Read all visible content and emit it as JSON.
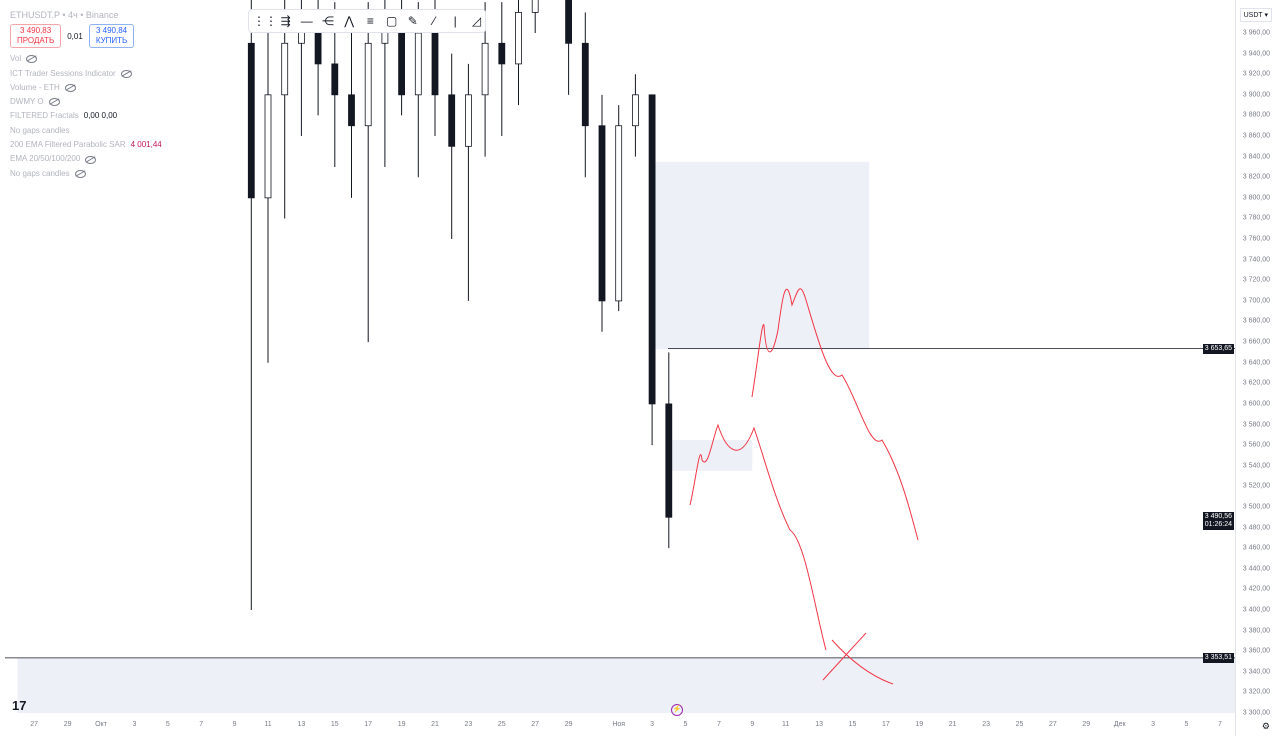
{
  "header": {
    "symbol": "ETHUSDT.P • 4ч • Binance",
    "sell_price": "3 490,83",
    "sell_label": "ПРОДАТЬ",
    "spread": "0,01",
    "buy_price": "3 490,84",
    "buy_label": "КУПИТЬ"
  },
  "indicators": [
    {
      "name": "Vol",
      "value": "",
      "eye": true
    },
    {
      "name": "ICT Trader Sessions Indicator",
      "value": "",
      "eye": true
    },
    {
      "name": "Volume - ETH",
      "value": "",
      "eye": true
    },
    {
      "name": "DWMY O",
      "value": "",
      "eye": true
    },
    {
      "name": "FILTERED Fractals",
      "value": "0,00 0,00",
      "eye": false
    },
    {
      "name": "No gaps candles",
      "value": "",
      "eye": false
    },
    {
      "name": "200 EMA Filtered Parabolic SAR",
      "value": "4 001,44",
      "eye": false,
      "red": true
    },
    {
      "name": "EMA 20/50/100/200",
      "value": "",
      "eye": true
    },
    {
      "name": "No gaps candles",
      "value": "",
      "eye": true
    }
  ],
  "toolbar": {
    "tools": [
      "drag-handle",
      "multi-line-tool",
      "horizontal-ray-tool",
      "parallel-channel-tool",
      "pattern-tool",
      "fib-tool",
      "rectangle-tool",
      "brush-tool",
      "trend-line-tool",
      "vertical-line-tool",
      "measure-tool"
    ]
  },
  "colors": {
    "up": "#131722",
    "down": "#131722",
    "zone": "#eef0f8",
    "drawing": "#f23645",
    "accent": "#2962ff"
  },
  "chart_data": {
    "type": "candlestick",
    "currency": "USDT",
    "ylim": [
      3290,
      3970
    ],
    "y_ticks": [
      "3 960,00",
      "3 940,00",
      "3 920,00",
      "3 900,00",
      "3 880,00",
      "3 860,00",
      "3 840,00",
      "3 820,00",
      "3 800,00",
      "3 780,00",
      "3 760,00",
      "3 740,00",
      "3 720,00",
      "3 700,00",
      "3 680,00",
      "3 660,00",
      "3 640,00",
      "3 620,00",
      "3 600,00",
      "3 580,00",
      "3 560,00",
      "3 540,00",
      "3 520,00",
      "3 500,00",
      "3 480,00",
      "3 460,00",
      "3 440,00",
      "3 420,00",
      "3 400,00",
      "3 380,00",
      "3 360,00",
      "3 340,00",
      "3 320,00",
      "3 300,00"
    ],
    "x_ticks": [
      [
        "27",
        "09-27"
      ],
      [
        "29",
        "09-29"
      ],
      [
        "Окт",
        "10-01"
      ],
      [
        "3",
        "10-03"
      ],
      [
        "5",
        "10-05"
      ],
      [
        "7",
        "10-07"
      ],
      [
        "9",
        "10-09"
      ],
      [
        "11",
        "10-11"
      ],
      [
        "13",
        "10-13"
      ],
      [
        "15",
        "10-15"
      ],
      [
        "17",
        "10-17"
      ],
      [
        "19",
        "10-19"
      ],
      [
        "21",
        "10-21"
      ],
      [
        "23",
        "10-23"
      ],
      [
        "25",
        "10-25"
      ],
      [
        "27",
        "10-27"
      ],
      [
        "29",
        "10-29"
      ],
      [
        "Ноя",
        "11-01"
      ],
      [
        "3",
        "11-03"
      ],
      [
        "5",
        "11-05"
      ],
      [
        "7",
        "11-07"
      ],
      [
        "9",
        "11-09"
      ],
      [
        "11",
        "11-11"
      ],
      [
        "13",
        "11-13"
      ],
      [
        "15",
        "11-15"
      ],
      [
        "17",
        "11-17"
      ],
      [
        "19",
        "11-19"
      ],
      [
        "21",
        "11-21"
      ],
      [
        "23",
        "11-23"
      ],
      [
        "25",
        "11-25"
      ],
      [
        "27",
        "11-27"
      ],
      [
        "29",
        "11-29"
      ],
      [
        "Дек",
        "12-01"
      ],
      [
        "3",
        "12-03"
      ],
      [
        "5",
        "12-05"
      ],
      [
        "7",
        "12-07"
      ]
    ],
    "candles": [
      [
        "10-10",
        3950,
        4000,
        3400,
        3800
      ],
      [
        "10-11",
        3800,
        3960,
        3640,
        3900
      ],
      [
        "10-12",
        3900,
        4000,
        3780,
        3950
      ],
      [
        "10-13",
        3950,
        4010,
        3860,
        3980
      ],
      [
        "10-14",
        3980,
        4020,
        3880,
        3930
      ],
      [
        "10-15",
        3930,
        3990,
        3830,
        3900
      ],
      [
        "10-16",
        3900,
        3970,
        3800,
        3870
      ],
      [
        "10-17",
        3870,
        3990,
        3660,
        3950
      ],
      [
        "10-18",
        3950,
        4000,
        3830,
        3980
      ],
      [
        "10-19",
        3980,
        4010,
        3880,
        3900
      ],
      [
        "10-20",
        3900,
        3990,
        3820,
        3960
      ],
      [
        "10-21",
        3960,
        4000,
        3860,
        3900
      ],
      [
        "10-22",
        3900,
        3940,
        3760,
        3850
      ],
      [
        "10-23",
        3850,
        3930,
        3700,
        3900
      ],
      [
        "10-24",
        3900,
        3990,
        3840,
        3950
      ],
      [
        "10-25",
        3950,
        3990,
        3860,
        3930
      ],
      [
        "10-26",
        3930,
        4010,
        3890,
        3980
      ],
      [
        "10-27",
        3980,
        4050,
        3960,
        4020
      ],
      [
        "10-29",
        4020,
        4100,
        3900,
        3950
      ],
      [
        "10-30",
        3950,
        3980,
        3820,
        3870
      ],
      [
        "10-31",
        3870,
        3900,
        3670,
        3700
      ],
      [
        "11-01",
        3700,
        3890,
        3690,
        3870
      ],
      [
        "11-02",
        3870,
        3920,
        3840,
        3900
      ],
      [
        "11-03",
        3900,
        3900,
        3560,
        3600
      ],
      [
        "11-04",
        3600,
        3650,
        3460,
        3490
      ]
    ],
    "levels": [
      {
        "price": 3653.65,
        "label": "3 653,65"
      },
      {
        "price": 3353.51,
        "label": "3 353,51"
      }
    ],
    "last_price": {
      "label": "3 490,56",
      "countdown": "01:26:24",
      "price": 3490.56
    },
    "zones": [
      {
        "from": "11-03",
        "to": "11-16",
        "low": 3653,
        "high": 3835
      },
      {
        "from": "11-04",
        "to": "11-09",
        "low": 3535,
        "high": 3565
      },
      {
        "from": "09-26",
        "to": "12-08",
        "low": 3300,
        "high": 3353.51
      }
    ]
  }
}
